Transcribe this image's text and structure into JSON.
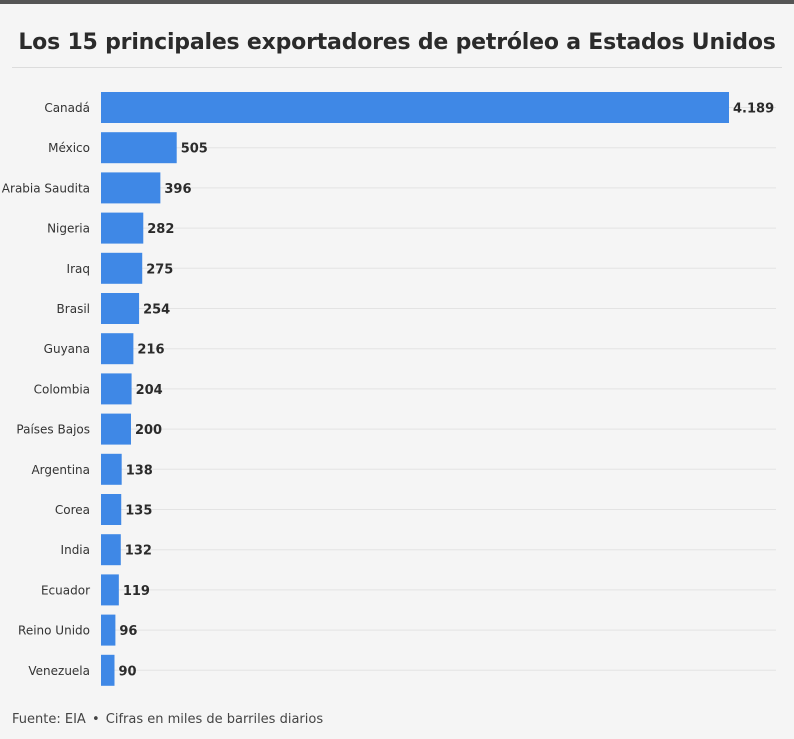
{
  "header": {
    "title": "Los 15 principales exportadores de petróleo a Estados Unidos"
  },
  "footer": {
    "source": "Fuente: EIA",
    "separator": "•",
    "note": "Cifras en miles de barriles diarios"
  },
  "colors": {
    "bar": "#3f88e6",
    "gridline": "#e3e3e3",
    "label_text": "#333333",
    "value_text": "#2b2b2b"
  },
  "chart_data": {
    "type": "bar",
    "orientation": "horizontal",
    "title": "Los 15 principales exportadores de petróleo a Estados Unidos",
    "xlabel": "",
    "ylabel": "",
    "xlim": [
      0,
      4189
    ],
    "grid": false,
    "categories": [
      "Canadá",
      "México",
      "Arabia Saudita",
      "Nigeria",
      "Iraq",
      "Brasil",
      "Guyana",
      "Colombia",
      "Países Bajos",
      "Argentina",
      "Corea",
      "India",
      "Ecuador",
      "Reino Unido",
      "Venezuela"
    ],
    "values": [
      4189,
      505,
      396,
      282,
      275,
      254,
      216,
      204,
      200,
      138,
      135,
      132,
      119,
      96,
      90
    ],
    "value_labels": [
      "4.189",
      "505",
      "396",
      "282",
      "275",
      "254",
      "216",
      "204",
      "200",
      "138",
      "135",
      "132",
      "119",
      "96",
      "90"
    ]
  }
}
